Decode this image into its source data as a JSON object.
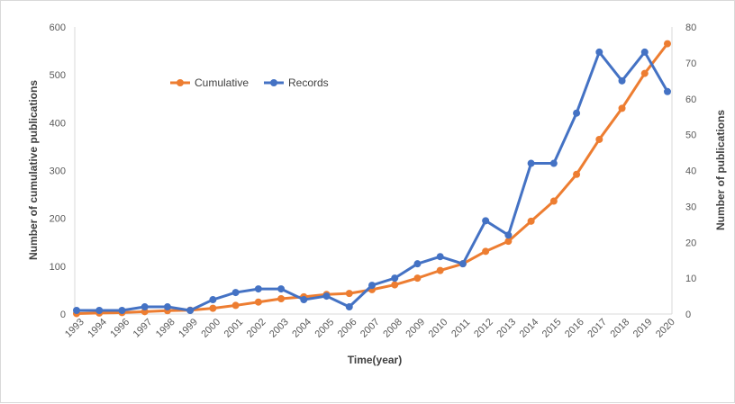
{
  "chart_data": {
    "type": "line",
    "categories": [
      "1993",
      "1994",
      "1996",
      "1997",
      "1998",
      "1999",
      "2000",
      "2001",
      "2002",
      "2003",
      "2004",
      "2005",
      "2006",
      "2007",
      "2008",
      "2009",
      "2010",
      "2011",
      "2012",
      "2013",
      "2014",
      "2015",
      "2016",
      "2017",
      "2018",
      "2019",
      "2020"
    ],
    "series": [
      {
        "name": "Cumulative",
        "axis": "left",
        "color": "#ED7D31",
        "values": [
          1,
          2,
          3,
          5,
          7,
          8,
          12,
          18,
          25,
          32,
          36,
          41,
          43,
          51,
          61,
          75,
          91,
          105,
          131,
          152,
          194,
          236,
          292,
          365,
          430,
          503,
          565
        ]
      },
      {
        "name": "Records",
        "axis": "right",
        "color": "#4472C4",
        "values": [
          1,
          1,
          1,
          2,
          2,
          1,
          4,
          6,
          7,
          7,
          4,
          5,
          2,
          8,
          10,
          14,
          16,
          14,
          26,
          22,
          42,
          42,
          56,
          73,
          65,
          73,
          62
        ]
      }
    ],
    "xlabel": "Time(year)",
    "ylabel": "Number of cumulative publications",
    "y2label": "Number of  publications",
    "ylim": [
      0,
      600
    ],
    "y2lim": [
      0,
      80
    ],
    "yticks": [
      "0",
      "100",
      "200",
      "300",
      "400",
      "500",
      "600"
    ],
    "y2ticks": [
      "0",
      "10",
      "20",
      "30",
      "40",
      "50",
      "60",
      "70",
      "80"
    ],
    "grid": false,
    "legend_position": "top-left"
  }
}
